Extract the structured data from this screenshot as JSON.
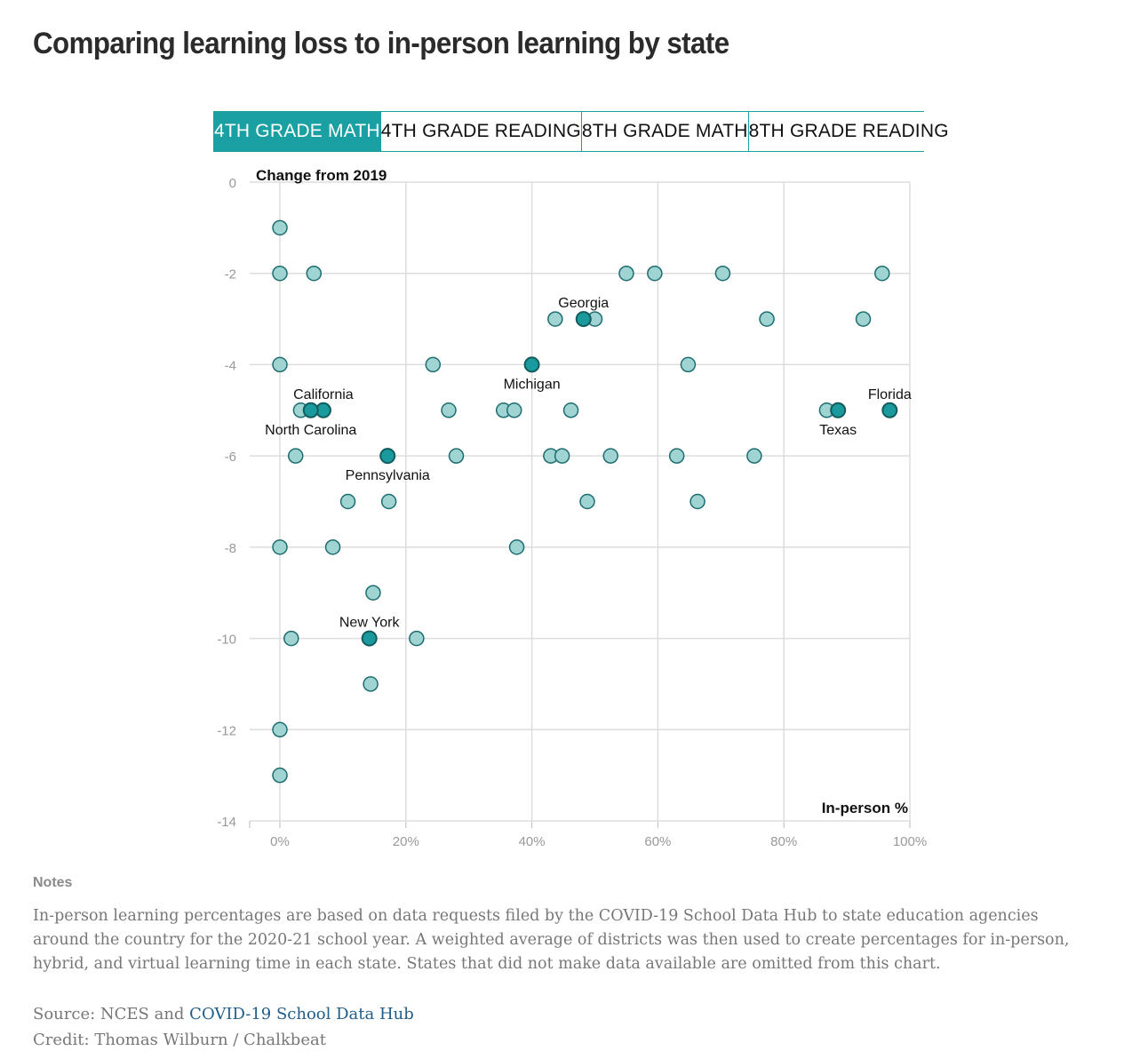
{
  "title": "Comparing learning loss to in-person learning by state",
  "tabs": [
    {
      "label": "4TH GRADE MATH",
      "active": true
    },
    {
      "label": "4TH GRADE READING",
      "active": false
    },
    {
      "label": "8TH GRADE MATH",
      "active": false
    },
    {
      "label": "8TH GRADE READING",
      "active": false
    }
  ],
  "colors": {
    "accent": "#1aa0a3",
    "point_fill": "#9fd4d3",
    "point_stroke": "#1d6d70",
    "highlight_fill": "#1a9a9d",
    "highlight_stroke": "#125c5e",
    "grid": "#dddddd"
  },
  "chart_data": {
    "type": "scatter",
    "ylabel": "Change from 2019",
    "xlabel": "In-person %",
    "xlim": [
      -5,
      100
    ],
    "ylim": [
      -14,
      0
    ],
    "xticks": [
      0,
      20,
      40,
      60,
      80,
      100
    ],
    "xtick_labels": [
      "0%",
      "20%",
      "40%",
      "60%",
      "80%",
      "100%"
    ],
    "yticks": [
      0,
      -2,
      -4,
      -6,
      -8,
      -10,
      -12,
      -14
    ],
    "ytick_labels": [
      "0",
      "-2",
      "-4",
      "-6",
      "-8",
      "-10",
      "-12",
      "-14"
    ],
    "grid": true,
    "points": [
      {
        "x": 0,
        "y": -1
      },
      {
        "x": 0,
        "y": -2
      },
      {
        "x": 5.4,
        "y": -2
      },
      {
        "x": 55,
        "y": -2
      },
      {
        "x": 59.5,
        "y": -2
      },
      {
        "x": 70.3,
        "y": -2
      },
      {
        "x": 95.6,
        "y": -2
      },
      {
        "x": 43.7,
        "y": -3
      },
      {
        "x": 50,
        "y": -3
      },
      {
        "x": 77.3,
        "y": -3
      },
      {
        "x": 92.6,
        "y": -3
      },
      {
        "x": 0,
        "y": -4
      },
      {
        "x": 24.3,
        "y": -4
      },
      {
        "x": 64.8,
        "y": -4
      },
      {
        "x": 3.3,
        "y": -5
      },
      {
        "x": 26.8,
        "y": -5
      },
      {
        "x": 35.5,
        "y": -5
      },
      {
        "x": 37.2,
        "y": -5
      },
      {
        "x": 46.2,
        "y": -5
      },
      {
        "x": 86.8,
        "y": -5
      },
      {
        "x": 2.5,
        "y": -6
      },
      {
        "x": 28,
        "y": -6
      },
      {
        "x": 43,
        "y": -6
      },
      {
        "x": 44.8,
        "y": -6
      },
      {
        "x": 52.5,
        "y": -6
      },
      {
        "x": 63,
        "y": -6
      },
      {
        "x": 75.3,
        "y": -6
      },
      {
        "x": 10.8,
        "y": -7
      },
      {
        "x": 17.3,
        "y": -7
      },
      {
        "x": 48.8,
        "y": -7
      },
      {
        "x": 66.3,
        "y": -7
      },
      {
        "x": 0,
        "y": -8
      },
      {
        "x": 8.4,
        "y": -8
      },
      {
        "x": 37.6,
        "y": -8
      },
      {
        "x": 14.8,
        "y": -9
      },
      {
        "x": 1.8,
        "y": -10
      },
      {
        "x": 21.7,
        "y": -10
      },
      {
        "x": 14.4,
        "y": -11
      },
      {
        "x": 0,
        "y": -12
      },
      {
        "x": 0,
        "y": -13
      }
    ],
    "highlighted": [
      {
        "name": "Georgia",
        "x": 48.2,
        "y": -3,
        "label_pos": "above"
      },
      {
        "name": "Michigan",
        "x": 40,
        "y": -4,
        "label_pos": "below"
      },
      {
        "name": "California",
        "x": 6.9,
        "y": -5,
        "label_pos": "above"
      },
      {
        "name": "North Carolina",
        "x": 4.9,
        "y": -5,
        "label_pos": "below"
      },
      {
        "name": "Texas",
        "x": 88.6,
        "y": -5,
        "label_pos": "below"
      },
      {
        "name": "Florida",
        "x": 96.8,
        "y": -5,
        "label_pos": "above"
      },
      {
        "name": "Pennsylvania",
        "x": 17.1,
        "y": -6,
        "label_pos": "below"
      },
      {
        "name": "New York",
        "x": 14.2,
        "y": -10,
        "label_pos": "above"
      }
    ]
  },
  "notes": {
    "heading": "Notes",
    "text": "In-person learning percentages are based on data requests filed by the COVID-19 School Data Hub to state education agencies around the country for the 2020-21 school year. A weighted average of districts was then used to create percentages for in-person, hybrid, and virtual learning time in each state. States that did not make data available are omitted from this chart."
  },
  "source": {
    "prefix": "Source: NCES and ",
    "link_text": "COVID-19 School Data Hub"
  },
  "credit": "Credit: Thomas Wilburn / Chalkbeat"
}
